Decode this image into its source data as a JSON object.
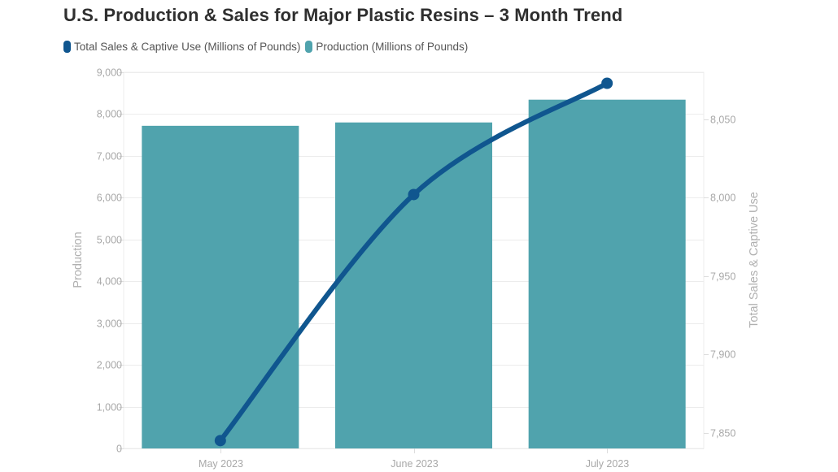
{
  "title": "U.S. Production & Sales for Major Plastic Resins – 3 Month Trend",
  "legend": [
    {
      "label": "Total Sales & Captive Use (Millions of Pounds)",
      "color": "#10568f",
      "icon": "rounded-rect-swatch"
    },
    {
      "label": "Production (Millions of Pounds)",
      "color": "#50a3ad",
      "icon": "rounded-rect-swatch"
    }
  ],
  "colors": {
    "bar": "#50a3ad",
    "line": "#10568f",
    "grid": "#ececec",
    "tick_text": "#a8a8a8",
    "title_text": "#2f2f2f"
  },
  "chart_data": {
    "type": "bar+line",
    "title": "U.S. Production & Sales for Major Plastic Resins – 3 Month Trend",
    "categories": [
      "May 2023",
      "June 2023",
      "July 2023"
    ],
    "series": [
      {
        "name": "Production (Millions of Pounds)",
        "type": "bar",
        "axis": "left",
        "values": [
          7720,
          7800,
          8345
        ]
      },
      {
        "name": "Total Sales & Captive Use (Millions of Pounds)",
        "type": "line",
        "axis": "right",
        "values": [
          7845,
          8002,
          8073
        ]
      }
    ],
    "xlabel": "",
    "ylabel": "Production",
    "y2label": "Total Sales & Captive Use",
    "ylim": [
      0,
      9000
    ],
    "y2lim": [
      7840,
      8080
    ],
    "yticks": [
      0,
      1000,
      2000,
      3000,
      4000,
      5000,
      6000,
      7000,
      8000,
      9000
    ],
    "ytick_labels": [
      "0",
      "1,000",
      "2,000",
      "3,000",
      "4,000",
      "5,000",
      "6,000",
      "7,000",
      "8,000",
      "9,000"
    ],
    "y2ticks": [
      7850,
      7900,
      7950,
      8000,
      8050
    ],
    "y2tick_labels": [
      "7,850",
      "7,900",
      "7,950",
      "8,000",
      "8,050"
    ],
    "grid": true,
    "legend_position": "top-left"
  }
}
